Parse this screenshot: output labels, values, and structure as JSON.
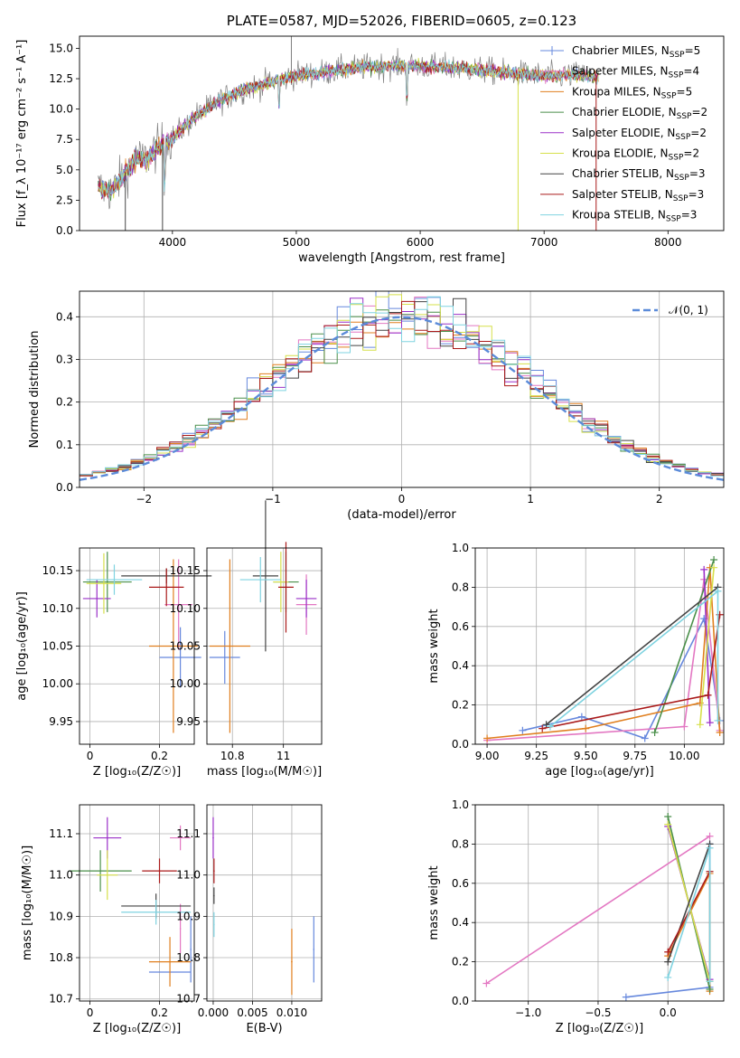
{
  "chart_data": [
    {
      "id": "spectrum",
      "type": "line",
      "title": "PLATE=0587, MJD=52026, FIBERID=0605, z=0.123",
      "xlabel": "wavelength [Angstrom, rest frame]",
      "ylabel": "Flux [f_λ 10⁻¹⁷ erg cm⁻² s⁻¹ A⁻¹]",
      "xlim": [
        3250,
        8450
      ],
      "ylim": [
        0,
        16
      ],
      "xticks": [
        4000,
        5000,
        6000,
        7000,
        8000
      ],
      "yticks": [
        0.0,
        2.5,
        5.0,
        7.5,
        10.0,
        12.5,
        15.0
      ],
      "legend_position": "right",
      "series": [
        {
          "name": "Chabrier MILES, N_SSP=5",
          "label": "Chabrier MILES, N",
          "sub": "SSP",
          "tail": "=5",
          "color": "#6688dd",
          "marker": "+"
        },
        {
          "name": "Salpeter MILES, N_SSP=4",
          "label": "Salpeter MILES, N",
          "sub": "SSP",
          "tail": "=4",
          "color": "#e377c2"
        },
        {
          "name": "Kroupa MILES, N_SSP=5",
          "label": "Kroupa MILES, N",
          "sub": "SSP",
          "tail": "=5",
          "color": "#e07f1f"
        },
        {
          "name": "Chabrier ELODIE, N_SSP=2",
          "label": "Chabrier ELODIE, N",
          "sub": "SSP",
          "tail": "=2",
          "color": "#4a8f4a"
        },
        {
          "name": "Salpeter ELODIE, N_SSP=2",
          "label": "Salpeter ELODIE, N",
          "sub": "SSP",
          "tail": "=2",
          "color": "#9b30c8"
        },
        {
          "name": "Kroupa ELODIE, N_SSP=2",
          "label": "Kroupa ELODIE, N",
          "sub": "SSP",
          "tail": "=2",
          "color": "#d6e04a"
        },
        {
          "name": "Chabrier STELIB, N_SSP=3",
          "label": "Chabrier STELIB, N",
          "sub": "SSP",
          "tail": "=3",
          "color": "#444444"
        },
        {
          "name": "Salpeter STELIB, N_SSP=3",
          "label": "Salpeter STELIB, N",
          "sub": "SSP",
          "tail": "=3",
          "color": "#aa1a1a"
        },
        {
          "name": "Kroupa STELIB, N_SSP=3",
          "label": "Kroupa STELIB, N",
          "sub": "SSP",
          "tail": "=3",
          "color": "#7fd3e0"
        }
      ],
      "data_trend": {
        "wavelength": [
          3400,
          3500,
          3600,
          3700,
          3800,
          3900,
          4000,
          4200,
          4400,
          4600,
          4800,
          5000,
          5200,
          5500,
          5800,
          6100,
          6400,
          6700,
          7000,
          7300,
          7400
        ],
        "flux": [
          3.6,
          3.2,
          4.5,
          5.8,
          6.0,
          7.0,
          7.6,
          9.5,
          10.8,
          11.7,
          12.2,
          12.8,
          13.0,
          13.4,
          13.6,
          13.5,
          13.3,
          13.0,
          12.7,
          12.8,
          12.6
        ]
      },
      "grid": false
    },
    {
      "id": "residuals",
      "type": "histogram",
      "xlabel": "(data-model)/error",
      "ylabel": "Normed distribution",
      "xlim": [
        -2.5,
        2.5
      ],
      "ylim": [
        0,
        0.46
      ],
      "xticks": [
        -2,
        -1,
        0,
        1,
        2
      ],
      "yticks": [
        0.0,
        0.1,
        0.2,
        0.3,
        0.4
      ],
      "reference_curve": {
        "name": "N(0,1)",
        "label": "𝒩(0, 1)",
        "color": "#5b8bd9",
        "style": "dashed"
      },
      "legend_position": "top-right",
      "bin_width": 0.1,
      "grid": true
    },
    {
      "id": "z-age",
      "type": "errorbar",
      "xlabel": "Z [log₁₀(Z/Z☉)]",
      "ylabel": "age  [log₁₀(age/yr)]",
      "xlim": [
        -0.03,
        0.3
      ],
      "ylim": [
        9.92,
        10.18
      ],
      "xticks": [
        0.0,
        0.2
      ],
      "yticks": [
        9.95,
        10.0,
        10.05,
        10.1,
        10.15
      ],
      "points": [
        {
          "series": 0,
          "x": 0.26,
          "y": 10.035,
          "xerr": 0.06,
          "yerr": 0.04
        },
        {
          "series": 1,
          "x": 0.255,
          "y": 10.105,
          "xerr": 0.04,
          "yerr": 0.06
        },
        {
          "series": 2,
          "x": 0.24,
          "y": 10.05,
          "xerr": 0.07,
          "yerr": 0.115
        },
        {
          "series": 3,
          "x": 0.05,
          "y": 10.135,
          "xerr": 0.07,
          "yerr": 0.04
        },
        {
          "series": 4,
          "x": 0.02,
          "y": 10.113,
          "xerr": 0.04,
          "yerr": 0.025
        },
        {
          "series": 5,
          "x": 0.04,
          "y": 10.133,
          "xerr": 0.05,
          "yerr": 0.04
        },
        {
          "series": 6,
          "x": 0.22,
          "y": 10.143,
          "xerr": 0.13,
          "yerr": 0.01
        },
        {
          "series": 7,
          "x": 0.22,
          "y": 10.128,
          "xerr": 0.05,
          "yerr": 0.025
        },
        {
          "series": 8,
          "x": 0.07,
          "y": 10.138,
          "xerr": 0.08,
          "yerr": 0.02
        }
      ],
      "grid": true
    },
    {
      "id": "mass-age",
      "type": "errorbar",
      "xlabel": "mass [log₁₀(M/M☉)]",
      "ylabel": "",
      "xlim": [
        10.7,
        11.15
      ],
      "ylim": [
        9.92,
        10.18
      ],
      "xticks": [
        10.8,
        11.0
      ],
      "yticks": [
        9.95,
        10.0,
        10.05,
        10.1,
        10.15
      ],
      "points": [
        {
          "series": 0,
          "x": 10.77,
          "y": 10.035,
          "xerr": 0.06,
          "yerr": 0.035
        },
        {
          "series": 1,
          "x": 11.09,
          "y": 10.105,
          "xerr": 0.04,
          "yerr": 0.04
        },
        {
          "series": 2,
          "x": 10.79,
          "y": 10.05,
          "xerr": 0.08,
          "yerr": 0.115
        },
        {
          "series": 3,
          "x": 11.01,
          "y": 10.135,
          "xerr": 0.05,
          "yerr": 0.04
        },
        {
          "series": 4,
          "x": 11.09,
          "y": 10.113,
          "xerr": 0.04,
          "yerr": 0.025
        },
        {
          "series": 5,
          "x": 10.99,
          "y": 10.135,
          "xerr": 0.03,
          "yerr": 0.04
        },
        {
          "series": 6,
          "x": 10.93,
          "y": 10.143,
          "xerr": 0.05,
          "yerr": 0.1
        },
        {
          "series": 7,
          "x": 11.01,
          "y": 10.128,
          "xerr": 0.03,
          "yerr": 0.06
        },
        {
          "series": 8,
          "x": 10.91,
          "y": 10.138,
          "xerr": 0.08,
          "yerr": 0.03
        }
      ],
      "grid": true
    },
    {
      "id": "age-weight",
      "type": "line",
      "xlabel": "age  [log₁₀(age/yr)]",
      "ylabel": "mass weight",
      "xlim": [
        8.94,
        10.2
      ],
      "ylim": [
        0,
        1
      ],
      "xticks": [
        9.0,
        9.25,
        9.5,
        9.75,
        10.0
      ],
      "xticklabels": [
        "9.00",
        "9.25",
        "9.50",
        "9.75",
        "10.00"
      ],
      "yticks": [
        0.0,
        0.2,
        0.4,
        0.6,
        0.8,
        1.0
      ],
      "series": [
        {
          "series": 0,
          "x": [
            9.18,
            9.48,
            9.8,
            10.1,
            10.18
          ],
          "y": [
            0.07,
            0.14,
            0.03,
            0.64,
            0.12
          ]
        },
        {
          "series": 1,
          "x": [
            9.0,
            10.0,
            10.1,
            10.18
          ],
          "y": [
            0.02,
            0.09,
            0.84,
            0.07
          ]
        },
        {
          "series": 2,
          "x": [
            9.0,
            9.5,
            10.08,
            10.13,
            10.18
          ],
          "y": [
            0.03,
            0.08,
            0.21,
            0.9,
            0.06
          ]
        },
        {
          "series": 3,
          "x": [
            9.85,
            10.15
          ],
          "y": [
            0.06,
            0.94
          ]
        },
        {
          "series": 4,
          "x": [
            10.1,
            10.13
          ],
          "y": [
            0.89,
            0.11
          ]
        },
        {
          "series": 5,
          "x": [
            10.08,
            10.15
          ],
          "y": [
            0.1,
            0.9
          ]
        },
        {
          "series": 6,
          "x": [
            9.3,
            10.17
          ],
          "y": [
            0.1,
            0.8
          ]
        },
        {
          "series": 7,
          "x": [
            9.28,
            10.12,
            10.18
          ],
          "y": [
            0.08,
            0.25,
            0.66
          ]
        },
        {
          "series": 8,
          "x": [
            9.32,
            10.17,
            10.17
          ],
          "y": [
            0.09,
            0.78,
            0.12
          ]
        }
      ],
      "grid": true
    },
    {
      "id": "z-mass",
      "type": "errorbar",
      "xlabel": "Z [log₁₀(Z/Z☉)]",
      "ylabel": "mass [log₁₀(M/M☉)]",
      "xlim": [
        -0.03,
        0.3
      ],
      "ylim": [
        10.695,
        11.17
      ],
      "xticks": [
        0.0,
        0.2
      ],
      "yticks": [
        10.7,
        10.8,
        10.9,
        11.0,
        11.1
      ],
      "points": [
        {
          "series": 0,
          "x": 0.23,
          "y": 10.765,
          "xerr": 0.06,
          "yerr": 0.0
        },
        {
          "series": 0,
          "x": 0.29,
          "y": 10.82,
          "xerr": 0.0,
          "yerr": 0.08
        },
        {
          "series": 1,
          "x": 0.26,
          "y": 10.87,
          "xerr": 0.0,
          "yerr": 0.06
        },
        {
          "series": 1,
          "x": 0.26,
          "y": 11.09,
          "xerr": 0.03,
          "yerr": 0.03
        },
        {
          "series": 2,
          "x": 0.23,
          "y": 10.79,
          "xerr": 0.06,
          "yerr": 0.06
        },
        {
          "series": 3,
          "x": 0.03,
          "y": 11.01,
          "xerr": 0.09,
          "yerr": 0.05
        },
        {
          "series": 4,
          "x": 0.05,
          "y": 11.09,
          "xerr": 0.04,
          "yerr": 0.05
        },
        {
          "series": 5,
          "x": 0.05,
          "y": 11.0,
          "xerr": 0.03,
          "yerr": 0.06
        },
        {
          "series": 6,
          "x": 0.19,
          "y": 10.925,
          "xerr": 0.1,
          "yerr": 0.03
        },
        {
          "series": 7,
          "x": 0.2,
          "y": 11.01,
          "xerr": 0.05,
          "yerr": 0.03
        },
        {
          "series": 8,
          "x": 0.19,
          "y": 10.91,
          "xerr": 0.1,
          "yerr": 0.03
        }
      ],
      "grid": true
    },
    {
      "id": "ebv-mass",
      "type": "errorbar",
      "xlabel": "E(B-V)",
      "ylabel": "",
      "xlim": [
        -0.0008,
        0.0138
      ],
      "ylim": [
        10.695,
        11.17
      ],
      "xticks": [
        0.0,
        0.005,
        0.01
      ],
      "xticklabels": [
        "0.000",
        "0.005",
        "0.010"
      ],
      "yticks": [
        10.7,
        10.8,
        10.9,
        11.0,
        11.1
      ],
      "points": [
        {
          "series": 0,
          "x": 0.0128,
          "y": 10.82,
          "xerr": 0,
          "yerr": 0.08
        },
        {
          "series": 2,
          "x": 0.01,
          "y": 10.79,
          "xerr": 0,
          "yerr": 0.08
        },
        {
          "series": 4,
          "x": 0.0,
          "y": 11.09,
          "xerr": 0,
          "yerr": 0.05
        },
        {
          "series": 7,
          "x": 0.0001,
          "y": 11.01,
          "xerr": 0,
          "yerr": 0.03
        },
        {
          "series": 6,
          "x": 0.0001,
          "y": 10.95,
          "xerr": 0,
          "yerr": 0.02
        },
        {
          "series": 8,
          "x": 0.0001,
          "y": 10.88,
          "xerr": 0,
          "yerr": 0.03
        }
      ],
      "grid": true
    },
    {
      "id": "z-weight",
      "type": "line",
      "xlabel": "Z [log₁₀(Z/Z☉)]",
      "ylabel": "mass weight",
      "xlim": [
        -1.38,
        0.4
      ],
      "ylim": [
        0,
        1
      ],
      "xticks": [
        -1.0,
        -0.5,
        0.0
      ],
      "xticklabels": [
        "−1.0",
        "−0.5",
        "0.0"
      ],
      "yticks": [
        0.0,
        0.2,
        0.4,
        0.6,
        0.8,
        1.0
      ],
      "series": [
        {
          "series": 0,
          "x": [
            -0.3,
            0.3,
            0.3
          ],
          "y": [
            0.02,
            0.07,
            0.8
          ]
        },
        {
          "series": 1,
          "x": [
            -1.3,
            0.3
          ],
          "y": [
            0.09,
            0.84
          ]
        },
        {
          "series": 2,
          "x": [
            0.0,
            0.3,
            0.3
          ],
          "y": [
            0.23,
            0.65,
            0.05
          ]
        },
        {
          "series": 3,
          "x": [
            0.0,
            0.3
          ],
          "y": [
            0.94,
            0.06
          ]
        },
        {
          "series": 4,
          "x": [
            0.0,
            0.3
          ],
          "y": [
            0.89,
            0.11
          ]
        },
        {
          "series": 5,
          "x": [
            0.0,
            0.3
          ],
          "y": [
            0.9,
            0.1
          ]
        },
        {
          "series": 6,
          "x": [
            0.0,
            0.3
          ],
          "y": [
            0.2,
            0.8
          ]
        },
        {
          "series": 7,
          "x": [
            0.0,
            0.3
          ],
          "y": [
            0.25,
            0.66
          ]
        },
        {
          "series": 8,
          "x": [
            0.0,
            0.3,
            0.3
          ],
          "y": [
            0.12,
            0.78,
            0.1
          ]
        }
      ],
      "grid": true
    }
  ]
}
